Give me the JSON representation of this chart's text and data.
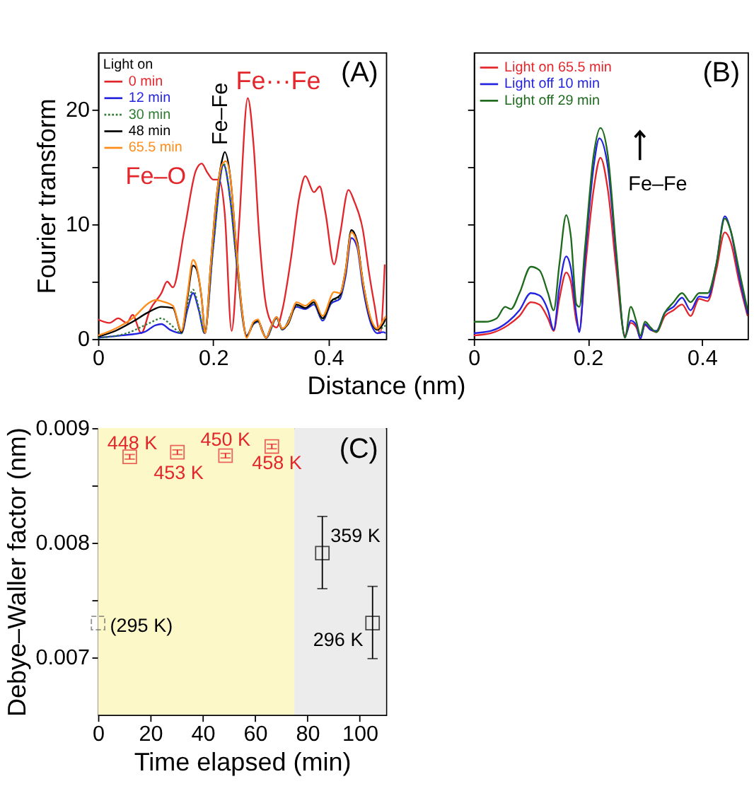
{
  "chart_data": [
    {
      "type": "line",
      "xlabel": "Distance (nm)",
      "ylabel": "Fourier transform",
      "legend_title": "Light on",
      "legend": "top left",
      "grid": false,
      "xlim": [
        0,
        0.5
      ],
      "xticks": [
        0,
        0.2,
        0.4
      ],
      "ylim": [
        0,
        25
      ],
      "yticks": [
        0,
        {
          "value": 5,
          "label": null
        },
        10,
        {
          "value": 15,
          "label": null
        },
        20
      ],
      "series": [
        {
          "name": "0 min",
          "color": "#e3262b",
          "line_style": "solid",
          "x": [
            0,
            0.02,
            0.035,
            0.05,
            0.06,
            0.075,
            0.09,
            0.11,
            0.12,
            0.13,
            0.15,
            0.17,
            0.18,
            0.19,
            0.2,
            0.21,
            0.22,
            0.232,
            0.245,
            0.26,
            0.27,
            0.28,
            0.29,
            0.3,
            0.31,
            0.32,
            0.335,
            0.35,
            0.36,
            0.375,
            0.385,
            0.395,
            0.41,
            0.42,
            0.435,
            0.445,
            0.46,
            0.47,
            0.48,
            0.49,
            0.498
          ],
          "values": [
            1.7,
            1.4,
            1.8,
            1.4,
            2.1,
            0.5,
            2.5,
            4.0,
            5.0,
            4.5,
            9.5,
            14.7,
            15.3,
            14.5,
            13.9,
            13.9,
            11,
            0.7,
            10,
            21.0,
            17,
            9,
            3.5,
            1.5,
            1.0,
            2.5,
            7,
            12.5,
            14.2,
            12.8,
            13.3,
            11,
            6.5,
            9,
            13,
            12,
            9.5,
            6,
            3,
            0.5,
            6.5
          ]
        },
        {
          "name": "12 min",
          "color": "#2424e0",
          "line_style": "solid",
          "x": [
            0,
            0.04,
            0.08,
            0.1,
            0.11,
            0.125,
            0.145,
            0.155,
            0.165,
            0.175,
            0.185,
            0.2,
            0.218,
            0.23,
            0.24,
            0.258,
            0.27,
            0.278,
            0.292,
            0.31,
            0.32,
            0.345,
            0.36,
            0.375,
            0.39,
            0.405,
            0.42,
            0.43,
            0.44,
            0.45,
            0.46,
            0.475,
            0.485,
            0.495,
            0.5
          ],
          "values": [
            0.1,
            0.3,
            0.6,
            1.2,
            1.3,
            0.8,
            0.5,
            2.5,
            4.0,
            2.5,
            0.5,
            8,
            15.2,
            12,
            7,
            0.3,
            1.3,
            1.5,
            0.1,
            1.8,
            0.8,
            2.8,
            2.6,
            3.0,
            1.6,
            3.1,
            3.5,
            5.5,
            8.8,
            8,
            4.5,
            1.2,
            0.5,
            0.6,
            0.5
          ]
        },
        {
          "name": "30 min",
          "color": "#2e7d32",
          "line_style": "dotted",
          "x": [
            0,
            0.05,
            0.09,
            0.11,
            0.125,
            0.145,
            0.155,
            0.165,
            0.175,
            0.185,
            0.2,
            0.218,
            0.23,
            0.24,
            0.258,
            0.27,
            0.278,
            0.292,
            0.31,
            0.32,
            0.345,
            0.36,
            0.375,
            0.39,
            0.405,
            0.42,
            0.43,
            0.44,
            0.45,
            0.46,
            0.475,
            0.485,
            0.495,
            0.5
          ],
          "values": [
            0.1,
            0.5,
            1.4,
            1.8,
            1.3,
            0.5,
            2.8,
            4.3,
            2.7,
            0.5,
            8,
            15.3,
            12,
            7,
            0.3,
            1.3,
            1.5,
            0.1,
            1.8,
            0.8,
            2.9,
            2.7,
            3.1,
            1.7,
            3.2,
            3.7,
            5.8,
            9.5,
            8.5,
            5,
            1.5,
            0.8,
            1.0,
            1.2
          ]
        },
        {
          "name": "48 min",
          "color": "#000000",
          "line_style": "solid",
          "x": [
            0,
            0.03,
            0.06,
            0.09,
            0.11,
            0.13,
            0.145,
            0.155,
            0.165,
            0.17,
            0.18,
            0.186,
            0.195,
            0.205,
            0.215,
            0.22,
            0.23,
            0.24,
            0.25,
            0.258,
            0.27,
            0.278,
            0.285,
            0.292,
            0.3,
            0.31,
            0.32,
            0.33,
            0.345,
            0.36,
            0.375,
            0.39,
            0.405,
            0.42,
            0.43,
            0.44,
            0.45,
            0.46,
            0.475,
            0.485,
            0.495,
            0.5
          ],
          "values": [
            0.2,
            0.7,
            1.5,
            2.4,
            2.8,
            2.7,
            0.6,
            3.5,
            6.4,
            6.2,
            3.5,
            0.5,
            6,
            12,
            15.5,
            16.3,
            14,
            8,
            2.5,
            0.2,
            1.4,
            1.6,
            0.7,
            0.1,
            1.0,
            1.9,
            0.9,
            1.3,
            3.0,
            2.7,
            3.2,
            1.8,
            3.3,
            3.8,
            6,
            9.5,
            8.5,
            5,
            1.5,
            0.8,
            1.3,
            1.8
          ]
        },
        {
          "name": "65.5 min",
          "color": "#ff8c1a",
          "line_style": "solid",
          "x": [
            0,
            0.03,
            0.06,
            0.09,
            0.1,
            0.11,
            0.13,
            0.145,
            0.155,
            0.165,
            0.17,
            0.18,
            0.186,
            0.195,
            0.205,
            0.215,
            0.222,
            0.23,
            0.24,
            0.25,
            0.258,
            0.27,
            0.278,
            0.285,
            0.292,
            0.3,
            0.31,
            0.32,
            0.33,
            0.345,
            0.36,
            0.375,
            0.39,
            0.41,
            0.42,
            0.43,
            0.44,
            0.45,
            0.46,
            0.475,
            0.485,
            0.495,
            0.5
          ],
          "values": [
            0.3,
            0.9,
            1.8,
            3.2,
            3.4,
            3.3,
            2.9,
            0.7,
            3.8,
            6.9,
            6.5,
            3.5,
            0.5,
            6,
            12,
            15.2,
            15.5,
            14,
            8,
            2.5,
            0.1,
            1.5,
            1.7,
            0.7,
            0.1,
            1.0,
            1.9,
            0.9,
            1.4,
            3.2,
            2.9,
            3.4,
            2.0,
            4.1,
            4.0,
            6,
            9.3,
            8.3,
            5,
            1.6,
            0.9,
            1.6,
            2.0
          ]
        }
      ],
      "annotations": [
        {
          "text": "Fe–O",
          "x": 0.18,
          "y": 15.3
        },
        {
          "text": "Fe–Fe",
          "x": 0.22,
          "y": 16.3
        },
        {
          "text": "Fe···Fe",
          "x": 0.26,
          "y": 21.0
        },
        "(A)"
      ]
    },
    {
      "type": "line",
      "legend": "top left",
      "grid": false,
      "tick_labels": "x",
      "xlim": [
        0,
        0.48
      ],
      "xticks": [
        0,
        0.2,
        0.4
      ],
      "ylim": [
        0,
        25
      ],
      "yticks": [
        0,
        {
          "value": 5,
          "label": null
        },
        {
          "value": 10,
          "label": null
        },
        {
          "value": 15,
          "label": null
        },
        {
          "value": 20,
          "label": null
        }
      ],
      "series": [
        {
          "name": "Light on 65.5 min",
          "color": "#e3262b",
          "line_style": "solid",
          "x": [
            0,
            0.03,
            0.06,
            0.08,
            0.1,
            0.115,
            0.13,
            0.14,
            0.15,
            0.162,
            0.17,
            0.18,
            0.185,
            0.195,
            0.21,
            0.222,
            0.235,
            0.25,
            0.265,
            0.275,
            0.285,
            0.292,
            0.3,
            0.31,
            0.32,
            0.335,
            0.35,
            0.365,
            0.38,
            0.395,
            0.41,
            0.425,
            0.44,
            0.45,
            0.465,
            0.48
          ],
          "values": [
            0.3,
            0.5,
            1.2,
            2.0,
            3.2,
            3.0,
            1.8,
            0.7,
            3.5,
            5.8,
            5.0,
            1.5,
            0.8,
            6,
            13,
            15.8,
            13,
            6,
            0.3,
            1.4,
            1.0,
            0.1,
            1.2,
            0.8,
            0.6,
            2.0,
            2.5,
            3.0,
            2.0,
            3.5,
            3.3,
            6,
            9.3,
            8.5,
            5,
            2.0
          ]
        },
        {
          "name": "Light off 10 min",
          "color": "#2424e0",
          "line_style": "solid",
          "x": [
            0,
            0.03,
            0.06,
            0.08,
            0.1,
            0.115,
            0.13,
            0.14,
            0.15,
            0.162,
            0.17,
            0.18,
            0.185,
            0.195,
            0.21,
            0.22,
            0.235,
            0.25,
            0.265,
            0.275,
            0.285,
            0.292,
            0.3,
            0.31,
            0.32,
            0.335,
            0.35,
            0.365,
            0.38,
            0.395,
            0.41,
            0.425,
            0.44,
            0.45,
            0.465,
            0.48
          ],
          "values": [
            0.5,
            0.7,
            1.5,
            2.5,
            4.0,
            3.8,
            2.5,
            0.8,
            4.5,
            7.2,
            6.2,
            2,
            0.6,
            7,
            15,
            17.5,
            15,
            7,
            0.2,
            1.6,
            1.2,
            0,
            1.3,
            0.8,
            0.7,
            2.3,
            2.8,
            3.6,
            2.5,
            3.7,
            3.6,
            6.5,
            10.7,
            9.5,
            5.5,
            2.2
          ]
        },
        {
          "name": "Light off 29 min",
          "color": "#1e6b1e",
          "line_style": "solid",
          "x": [
            0,
            0.02,
            0.04,
            0.055,
            0.065,
            0.08,
            0.1,
            0.115,
            0.13,
            0.14,
            0.15,
            0.162,
            0.17,
            0.18,
            0.185,
            0.195,
            0.21,
            0.222,
            0.235,
            0.25,
            0.265,
            0.275,
            0.285,
            0.292,
            0.3,
            0.31,
            0.32,
            0.335,
            0.35,
            0.365,
            0.38,
            0.395,
            0.41,
            0.425,
            0.44,
            0.45,
            0.465,
            0.48
          ],
          "values": [
            1.5,
            1.5,
            1.8,
            2.8,
            2.6,
            4.0,
            6.3,
            6.0,
            4.0,
            2.5,
            6.5,
            10.8,
            9,
            3.0,
            2.8,
            8,
            16,
            18.4,
            16,
            7.5,
            0.1,
            2.8,
            1.5,
            0.3,
            1.5,
            1.0,
            0.6,
            2.3,
            3.2,
            4.0,
            3.2,
            4.0,
            4.0,
            6.5,
            10.5,
            9.5,
            6,
            2.5
          ]
        }
      ],
      "annotations": [
        {
          "text": "Fe–Fe",
          "x": 0.222,
          "y": 18.4
        },
        "(B)"
      ]
    },
    {
      "type": "scatter",
      "xlabel": "Time elapsed (min)",
      "ylabel": "Debye–Waller factor (nm)",
      "grid": false,
      "marker": "square",
      "xlim": [
        0,
        110
      ],
      "xticks": [
        0,
        20,
        40,
        60,
        80,
        100
      ],
      "ylim": [
        0.0065,
        0.009
      ],
      "yticks": [
        0.007,
        {
          "value": 0.0075,
          "label": null
        },
        0.008,
        {
          "value": 0.0085,
          "label": null
        },
        0.009
      ],
      "bands": [
        {
          "axis": "x",
          "from": 0,
          "to": 75,
          "color": "#fdf8c8"
        },
        {
          "axis": "x",
          "from": 75,
          "to": 110,
          "color": "#ececec"
        }
      ],
      "series": [
        {
          "color": "#e3262b",
          "line_style": "solid",
          "x": [
            12.1,
            30.3,
            48.7,
            66.4
          ],
          "values": [
            0.00875,
            0.00879,
            0.00876,
            0.00884
          ],
          "errors": [
            2e-05,
            2e-05,
            2e-05,
            2e-05
          ]
        },
        {
          "color": "#000000",
          "line_style": "solid",
          "x": [
            85.7,
            104.9
          ],
          "values": [
            0.00791,
            0.0073
          ],
          "errors": [
            [
              0.0076,
              0.00823
            ],
            [
              0.00699,
              0.00762
            ]
          ]
        },
        {
          "color": "#666666",
          "line_style": "dashed",
          "x": [
            0
          ],
          "values": [
            0.0073
          ]
        }
      ],
      "annotations": [
        {
          "text": "448 K",
          "x": 12.1,
          "y": 0.00875
        },
        {
          "text": "453 K",
          "x": 30.3,
          "y": 0.00879
        },
        {
          "text": "450 K",
          "x": 48.7,
          "y": 0.00876
        },
        {
          "text": "458 K",
          "x": 66.4,
          "y": 0.00884
        },
        {
          "text": "359 K",
          "x": 85.7,
          "y": 0.00791
        },
        {
          "text": "296 K",
          "x": 104.9,
          "y": 0.0073
        },
        {
          "text": "(295 K)",
          "x": 0,
          "y": 0.0073
        },
        "(C)"
      ]
    }
  ]
}
